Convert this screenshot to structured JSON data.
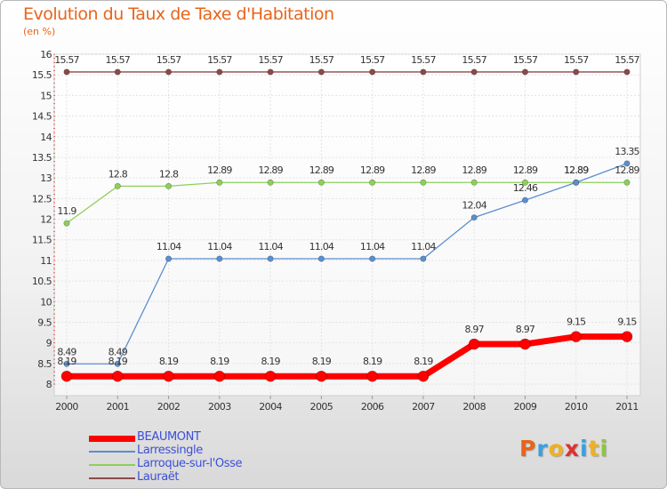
{
  "title": "Evolution du Taux de Taxe d'Habitation",
  "subtitle": "(en %)",
  "logo": {
    "text": "Proxiti",
    "colors": [
      "#e8641b",
      "#3aa0e0",
      "#f0b020",
      "#e03030",
      "#3aa0e0",
      "#f0b020",
      "#8cc63f"
    ]
  },
  "chart_data": {
    "type": "line",
    "title": "Evolution du Taux de Taxe d'Habitation",
    "ylabel": "(en %)",
    "xlabel": "",
    "x": [
      "2000",
      "2001",
      "2002",
      "2003",
      "2004",
      "2005",
      "2006",
      "2007",
      "2008",
      "2009",
      "2010",
      "2011"
    ],
    "ylim": [
      8,
      16
    ],
    "yticks": [
      "8",
      "8.5",
      "9",
      "9.5",
      "10",
      "10.5",
      "11",
      "11.5",
      "12",
      "12.5",
      "13",
      "13.5",
      "14",
      "14.5",
      "15",
      "15.5",
      "16"
    ],
    "grid": true,
    "legend_position": "bottom-left",
    "series": [
      {
        "name": "BEAUMONT",
        "color": "#ff0000",
        "values": [
          8.19,
          8.19,
          8.19,
          8.19,
          8.19,
          8.19,
          8.19,
          8.19,
          8.97,
          8.97,
          9.15,
          9.15
        ],
        "labels": [
          "8.19",
          "8.19",
          "8.19",
          "8.19",
          "8.19",
          "8.19",
          "8.19",
          "8.19",
          "8.97",
          "8.97",
          "9.15",
          "9.15"
        ]
      },
      {
        "name": "Larressingle",
        "color": "#5a8fcf",
        "values": [
          8.49,
          8.49,
          11.04,
          11.04,
          11.04,
          11.04,
          11.04,
          11.04,
          12.04,
          12.46,
          12.89,
          13.35
        ],
        "labels": [
          "8.49",
          "8.49",
          "11.04",
          "11.04",
          "11.04",
          "11.04",
          "11.04",
          "11.04",
          "12.04",
          "12.46",
          "12.89",
          "13.35"
        ]
      },
      {
        "name": "Larroque-sur-l'Osse",
        "color": "#8cd05a",
        "values": [
          11.9,
          12.8,
          12.8,
          12.89,
          12.89,
          12.89,
          12.89,
          12.89,
          12.89,
          12.89,
          12.89,
          12.89
        ],
        "labels": [
          "11.9",
          "12.8",
          "12.8",
          "12.89",
          "12.89",
          "12.89",
          "12.89",
          "12.89",
          "12.89",
          "12.89",
          "12.89",
          "12.89"
        ]
      },
      {
        "name": "Lauraët",
        "color": "#8b4a4a",
        "values": [
          15.57,
          15.57,
          15.57,
          15.57,
          15.57,
          15.57,
          15.57,
          15.57,
          15.57,
          15.57,
          15.57,
          15.57
        ],
        "labels": [
          "15.57",
          "15.57",
          "15.57",
          "15.57",
          "15.57",
          "15.57",
          "15.57",
          "15.57",
          "15.57",
          "15.57",
          "15.57",
          "15.57"
        ]
      }
    ]
  }
}
